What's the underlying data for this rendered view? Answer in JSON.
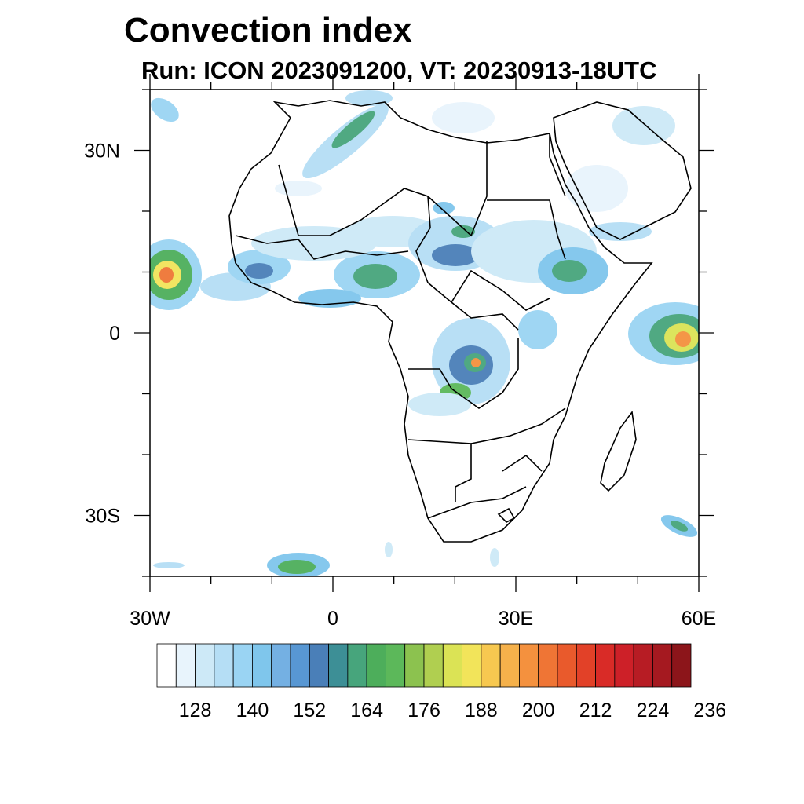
{
  "title": "Convection index",
  "subtitle": "Run: ICON 2023091200,  VT: 20230913-18UTC",
  "map": {
    "lon_range": [
      -30,
      60
    ],
    "lat_range": [
      -40,
      40
    ],
    "lat_ticks": [
      {
        "value": 30,
        "label": "30N"
      },
      {
        "value": 0,
        "label": "0"
      },
      {
        "value": -30,
        "label": "30S"
      }
    ],
    "lon_ticks": [
      {
        "value": -30,
        "label": "30W"
      },
      {
        "value": 0,
        "label": "0"
      },
      {
        "value": 30,
        "label": "30E"
      },
      {
        "value": 60,
        "label": "60E"
      }
    ]
  },
  "colorbar": {
    "colors": [
      "#ffffff",
      "#e8f4fc",
      "#cde9f7",
      "#b5def5",
      "#9ad4f3",
      "#7fc6ec",
      "#74b0e3",
      "#5897d3",
      "#4a7fb8",
      "#3d8f96",
      "#47a57c",
      "#4dae5b",
      "#5cb85a",
      "#8cc24f",
      "#b0cf50",
      "#dbe355",
      "#f2e45a",
      "#f7c850",
      "#f5b14b",
      "#f4913e",
      "#ef7535",
      "#e95a2c",
      "#e24128",
      "#d92b27",
      "#cd2028",
      "#b71c24",
      "#a51920",
      "#8c151a"
    ],
    "labels": [
      "128",
      "140",
      "152",
      "164",
      "176",
      "188",
      "200",
      "212",
      "224",
      "236"
    ]
  }
}
